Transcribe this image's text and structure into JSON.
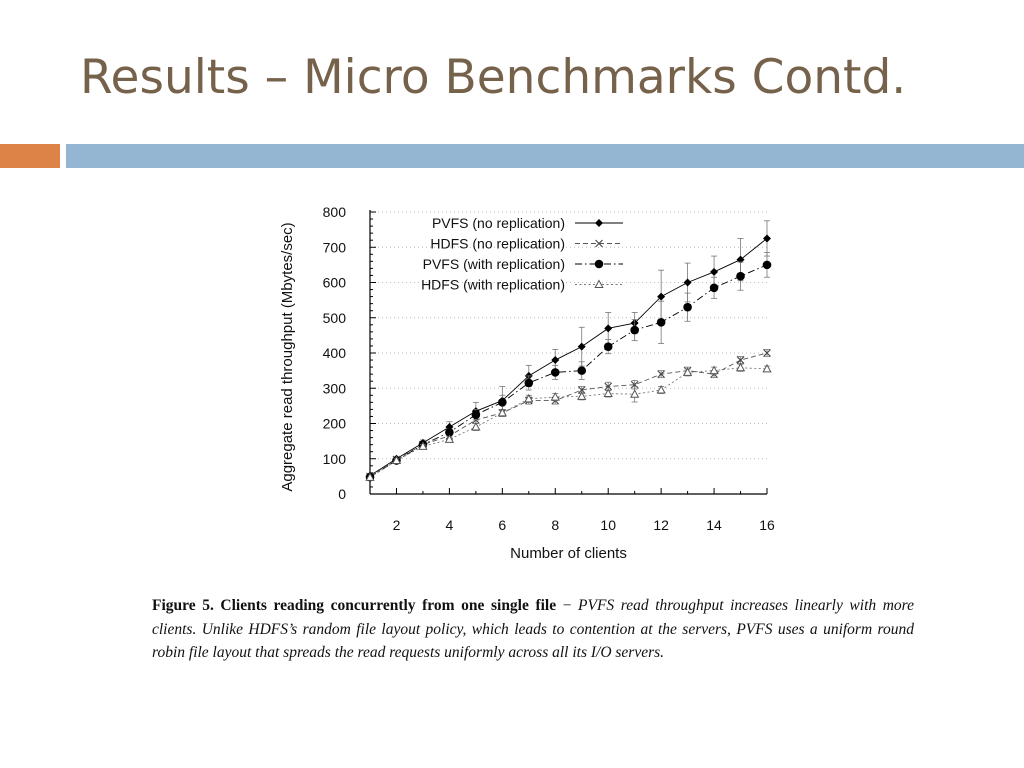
{
  "slide": {
    "title": "Results – Micro Benchmarks Contd.",
    "colors": {
      "title": "#76624b",
      "accent": "#dd8347",
      "divider": "#94b6d2"
    }
  },
  "chart_data": {
    "type": "line",
    "xlabel": "Number of clients",
    "ylabel": "Aggregate read throughput (Mbytes/sec)",
    "xlim": [
      1,
      16
    ],
    "ylim": [
      0,
      800
    ],
    "x_ticks": [
      2,
      4,
      6,
      8,
      10,
      12,
      14,
      16
    ],
    "y_ticks": [
      0,
      100,
      200,
      300,
      400,
      500,
      600,
      700,
      800
    ],
    "grid": "horizontal dotted",
    "legend_position": "top-left",
    "x": [
      1,
      2,
      3,
      4,
      5,
      6,
      7,
      8,
      9,
      10,
      11,
      12,
      13,
      14,
      15,
      16
    ],
    "series": [
      {
        "name": "PVFS (no replication)",
        "marker": "diamond",
        "line": "solid",
        "values": [
          52,
          100,
          145,
          190,
          235,
          265,
          335,
          380,
          418,
          470,
          485,
          560,
          600,
          630,
          665,
          725
        ],
        "error": [
          0,
          5,
          8,
          15,
          25,
          40,
          30,
          30,
          55,
          45,
          30,
          75,
          55,
          45,
          60,
          50
        ]
      },
      {
        "name": "HDFS (no replication)",
        "marker": "cross",
        "line": "dashed",
        "values": [
          50,
          98,
          140,
          165,
          210,
          230,
          265,
          265,
          295,
          305,
          310,
          340,
          350,
          340,
          380,
          400
        ],
        "error": [
          0,
          5,
          5,
          8,
          10,
          10,
          10,
          10,
          10,
          12,
          12,
          10,
          10,
          10,
          10,
          10
        ]
      },
      {
        "name": "PVFS (with replication)",
        "marker": "circle",
        "line": "dashdot",
        "values": [
          48,
          95,
          140,
          175,
          225,
          260,
          315,
          345,
          350,
          418,
          465,
          487,
          530,
          585,
          618,
          650
        ],
        "error": [
          0,
          5,
          8,
          10,
          15,
          20,
          20,
          20,
          25,
          20,
          30,
          60,
          40,
          30,
          40,
          35
        ]
      },
      {
        "name": "HDFS (with replication)",
        "marker": "triangle",
        "line": "dotted",
        "values": [
          47,
          95,
          135,
          155,
          190,
          230,
          270,
          275,
          277,
          285,
          283,
          295,
          345,
          350,
          358,
          355
        ],
        "error": [
          0,
          5,
          5,
          8,
          10,
          10,
          10,
          10,
          10,
          10,
          22,
          10,
          10,
          10,
          10,
          8
        ]
      }
    ]
  },
  "caption": {
    "label": "Figure 5.   Clients reading concurrently from one single file",
    "dash": " − ",
    "body": "PVFS read throughput increases linearly with more clients. Unlike HDFS’s random file layout policy, which leads to contention at the servers, PVFS uses a uniform round robin file layout that spreads the read requests uniformly across all its I/O servers."
  }
}
